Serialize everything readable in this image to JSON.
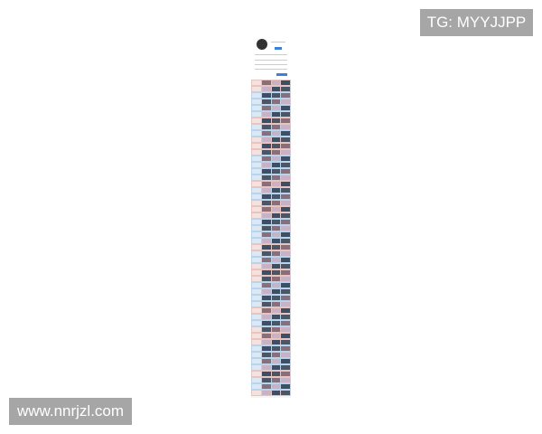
{
  "watermarks": {
    "top_right": "TG: MYYJJPP",
    "bottom_left": "www.nnrjzl.com"
  },
  "colors": {
    "row_pink": "#e8c4c0",
    "row_blue": "#b9d3ea",
    "accent": "#3b82d6"
  },
  "row_pattern": [
    "pink",
    "pink",
    "blue",
    "blue",
    "blue",
    "blue",
    "pink",
    "blue",
    "blue",
    "pink"
  ]
}
